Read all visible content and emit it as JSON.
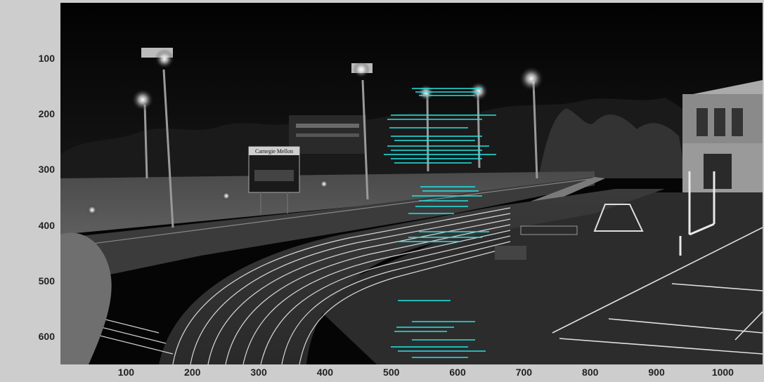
{
  "figure": {
    "image_description_free": true,
    "y_ticks": [
      "100",
      "200",
      "300",
      "400",
      "500",
      "600"
    ],
    "x_ticks": [
      "100",
      "200",
      "300",
      "400",
      "500",
      "600",
      "700",
      "800",
      "900",
      "1000"
    ],
    "scoreboard_text": "Carnegie Mellon",
    "overlay_color": "#22e5e5",
    "image_tone": "grayscale"
  },
  "axis_ranges": {
    "x": [
      1,
      1060
    ],
    "y": [
      1,
      650
    ]
  }
}
